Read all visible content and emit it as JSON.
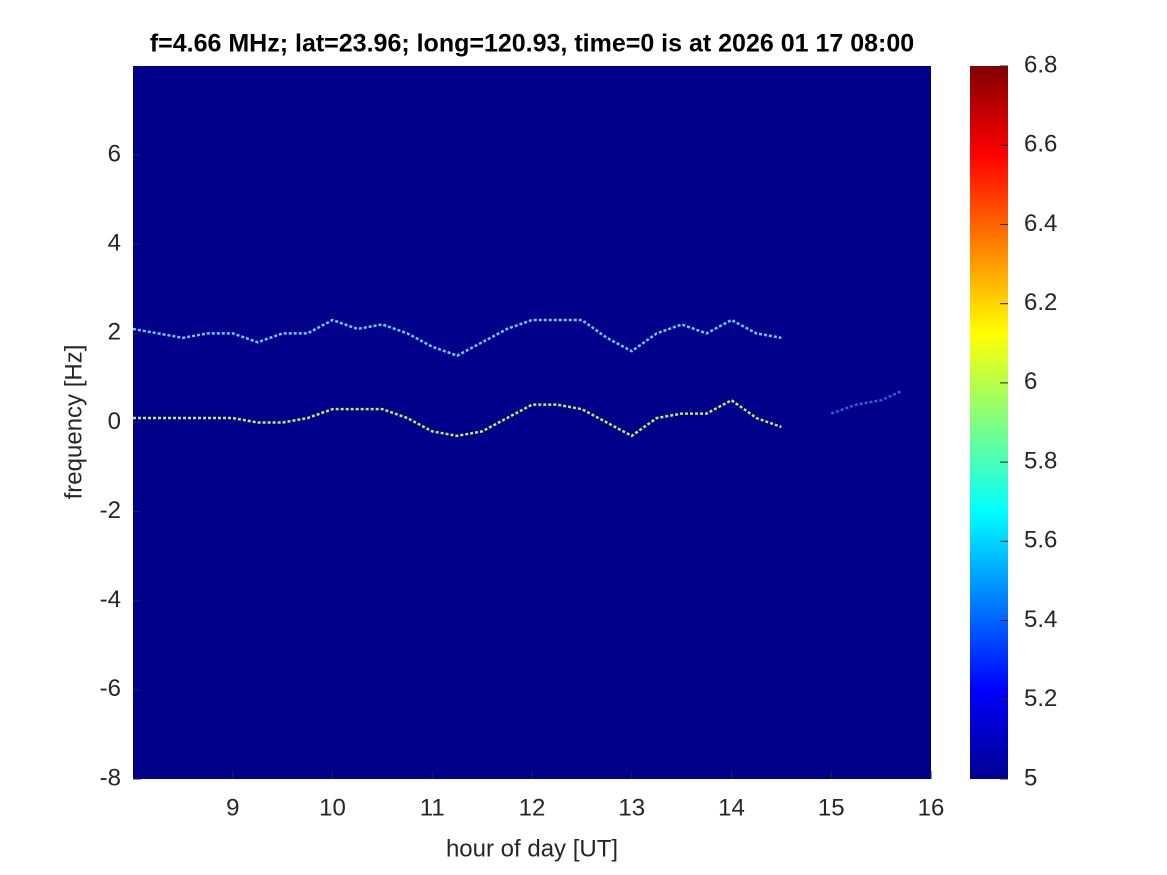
{
  "chart_data": {
    "type": "spectrogram",
    "title": "f=4.66 MHz;  lat=23.96; long=120.93, time=0 is at 2026 01 17 08:00",
    "xlabel": "hour of day [UT]",
    "ylabel": "frequency [Hz]",
    "xlim": [
      8,
      16
    ],
    "xticks": [
      9,
      10,
      11,
      12,
      13,
      14,
      15,
      16
    ],
    "ylim": [
      -8,
      8
    ],
    "yticks": [
      -8,
      -6,
      -4,
      -2,
      0,
      2,
      4,
      6
    ],
    "background": "#00008b",
    "clim": [
      5,
      6.8
    ],
    "cticks": [
      5,
      5.2,
      5.4,
      5.6,
      5.8,
      6,
      6.2,
      6.4,
      6.6,
      6.8
    ],
    "series": [
      {
        "color": "#5fd3e6",
        "x": [
          8,
          8.25,
          8.5,
          8.75,
          9,
          9.25,
          9.5,
          9.75,
          10,
          10.25,
          10.5,
          10.75,
          11,
          11.25,
          11.5,
          11.75,
          12,
          12.25,
          12.5,
          12.75,
          13,
          13.25,
          13.5,
          13.75,
          14,
          14.25,
          14.5
        ],
        "values": [
          2.1,
          2.0,
          1.9,
          2.0,
          2.0,
          1.8,
          2.0,
          2.0,
          2.3,
          2.1,
          2.2,
          2.0,
          1.7,
          1.5,
          1.8,
          2.1,
          2.3,
          2.3,
          2.3,
          1.9,
          1.6,
          2.0,
          2.2,
          2.0,
          2.3,
          2.0,
          1.9
        ]
      },
      {
        "color": "#c8e85a",
        "x": [
          8,
          8.25,
          8.5,
          8.75,
          9,
          9.25,
          9.5,
          9.75,
          10,
          10.25,
          10.5,
          10.75,
          11,
          11.25,
          11.5,
          11.75,
          12,
          12.25,
          12.5,
          12.75,
          13,
          13.25,
          13.5,
          13.75,
          14,
          14.25,
          14.5
        ],
        "values": [
          0.1,
          0.1,
          0.1,
          0.1,
          0.1,
          0.0,
          0.0,
          0.1,
          0.3,
          0.3,
          0.3,
          0.1,
          -0.2,
          -0.3,
          -0.2,
          0.1,
          0.4,
          0.4,
          0.3,
          0.0,
          -0.3,
          0.1,
          0.2,
          0.2,
          0.5,
          0.1,
          -0.1
        ]
      },
      {
        "color": "#2f5fd0",
        "x": [
          15,
          15.25,
          15.5,
          15.7
        ],
        "values": [
          0.2,
          0.4,
          0.5,
          0.7
        ]
      }
    ]
  }
}
